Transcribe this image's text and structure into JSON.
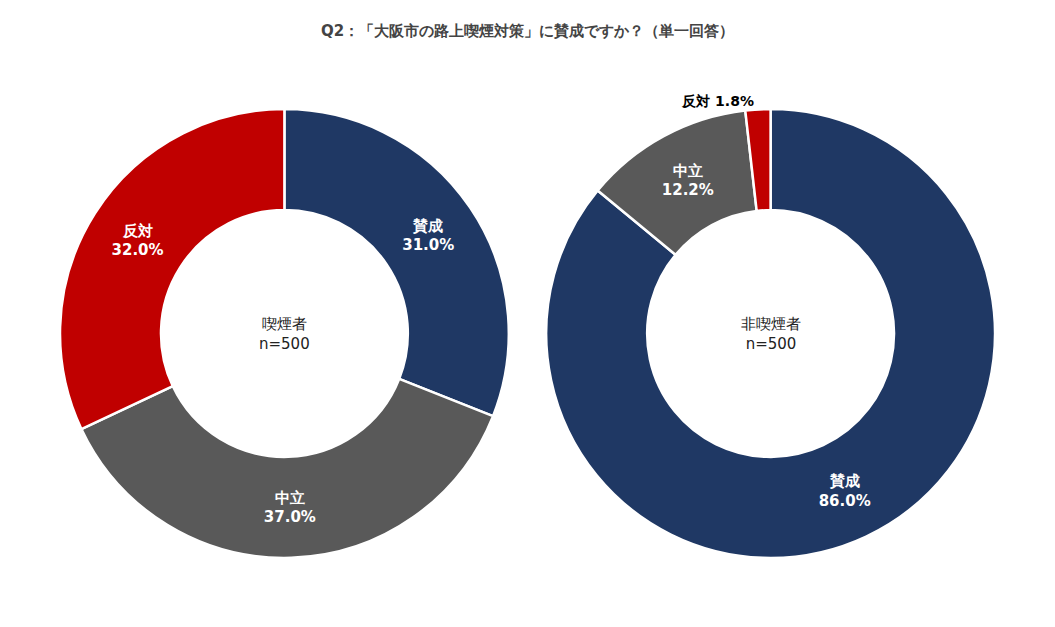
{
  "title": "Q2：「大阪市の路上喫煙対策」に賛成ですか？（単一回答）",
  "chart_data": [
    {
      "type": "pie",
      "categories": [
        "賛成",
        "中立",
        "反対"
      ],
      "values": [
        31.0,
        37.0,
        32.0
      ],
      "value_labels": [
        "賛成\n31.0%",
        "中立\n37.0%",
        "反対\n32.0%"
      ],
      "colors": [
        "#1f3864",
        "#595959",
        "#c00000"
      ],
      "data_labels": true,
      "annotations": [
        "喫煙者",
        "n=500"
      ]
    },
    {
      "type": "pie",
      "categories": [
        "賛成",
        "中立",
        "反対"
      ],
      "values": [
        86.0,
        12.2,
        1.8
      ],
      "value_labels": [
        "賛成\n86.0%",
        "中立\n12.2%",
        "反対 1.8%"
      ],
      "colors": [
        "#1f3864",
        "#595959",
        "#c00000"
      ],
      "data_labels": true,
      "annotations": [
        "非喫煙者",
        "n=500"
      ]
    }
  ]
}
